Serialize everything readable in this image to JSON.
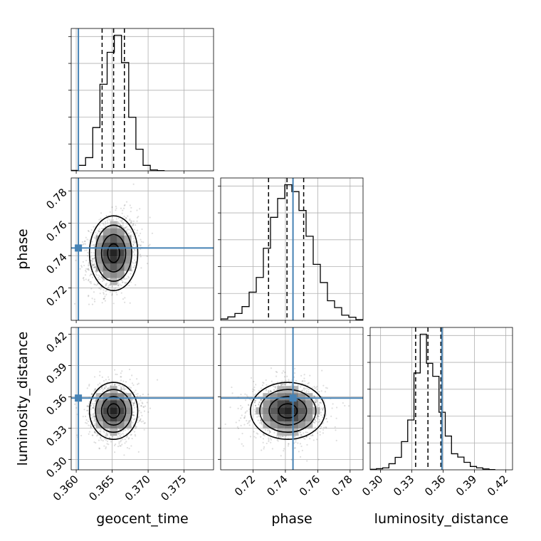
{
  "chart_data": {
    "type": "corner",
    "parameters": [
      "geocent_time",
      "phase",
      "luminosity_distance"
    ],
    "grid": true,
    "truth_color": "#4682b4",
    "hist_color": "#000000",
    "quantile_style": "dashed",
    "truths": {
      "geocent_time": 0.3603,
      "phase": 0.7447,
      "luminosity_distance": 0.3588
    },
    "axes": {
      "geocent_time": {
        "range": [
          0.3593,
          0.3791
        ],
        "ticks": [
          "0.360",
          "0.365",
          "0.370",
          "0.375"
        ],
        "tick_values": [
          0.36,
          0.365,
          0.37,
          0.375
        ],
        "label": "geocent_time"
      },
      "phase": {
        "range": [
          0.7,
          0.788
        ],
        "ticks": [
          "0.72",
          "0.74",
          "0.76",
          "0.78"
        ],
        "tick_values": [
          0.72,
          0.74,
          0.76,
          0.78
        ],
        "label": "phase"
      },
      "luminosity_distance": {
        "range": [
          0.29,
          0.4265
        ],
        "ticks": [
          "0.30",
          "0.33",
          "0.36",
          "0.39",
          "0.42"
        ],
        "tick_values": [
          0.3,
          0.33,
          0.36,
          0.39,
          0.42
        ],
        "label": "luminosity_distance"
      }
    },
    "marginals": [
      {
        "param": "geocent_time",
        "quantiles": [
          0.3636,
          0.3652,
          0.3667
        ],
        "bins": [
          0.3593,
          0.3603,
          0.3613,
          0.3623,
          0.3633,
          0.3643,
          0.3653,
          0.3663,
          0.3673,
          0.3683,
          0.3693,
          0.3703,
          0.3713,
          0.3723
        ],
        "counts": [
          2,
          24,
          58,
          190,
          380,
          520,
          595,
          475,
          235,
          95,
          24,
          4,
          1
        ]
      },
      {
        "param": "phase",
        "quantiles": [
          0.7296,
          0.741,
          0.7513
        ],
        "bins": [
          0.7,
          0.7044,
          0.7088,
          0.7132,
          0.7176,
          0.722,
          0.7264,
          0.7308,
          0.7352,
          0.7396,
          0.744,
          0.7484,
          0.7528,
          0.7572,
          0.7616,
          0.766,
          0.7704,
          0.7748,
          0.7792,
          0.7836,
          0.788
        ],
        "counts": [
          4,
          10,
          20,
          40,
          82,
          125,
          210,
          300,
          355,
          395,
          375,
          320,
          245,
          163,
          110,
          57,
          37,
          15,
          9,
          2
        ]
      },
      {
        "param": "luminosity_distance",
        "quantiles": [
          0.3336,
          0.3454,
          0.3578
        ],
        "bins": [
          0.29,
          0.296,
          0.302,
          0.308,
          0.314,
          0.32,
          0.326,
          0.332,
          0.338,
          0.344,
          0.35,
          0.356,
          0.362,
          0.368,
          0.374,
          0.38,
          0.386,
          0.392,
          0.398,
          0.404,
          0.41
        ],
        "counts": [
          2,
          4,
          7,
          22,
          45,
          102,
          180,
          350,
          490,
          385,
          338,
          208,
          122,
          58,
          46,
          27,
          12,
          7,
          3,
          1
        ]
      }
    ],
    "joint": [
      {
        "x": "geocent_time",
        "y": "phase",
        "center": [
          0.3652,
          0.7415
        ],
        "sigma": [
          0.0016,
          0.011
        ],
        "rho": 0.2
      },
      {
        "x": "geocent_time",
        "y": "luminosity_distance",
        "center": [
          0.3652,
          0.3465
        ],
        "sigma": [
          0.0016,
          0.013
        ],
        "rho": 0.0
      },
      {
        "x": "phase",
        "y": "luminosity_distance",
        "center": [
          0.7415,
          0.3465
        ],
        "sigma": [
          0.011,
          0.013
        ],
        "rho": 0.0
      }
    ]
  }
}
